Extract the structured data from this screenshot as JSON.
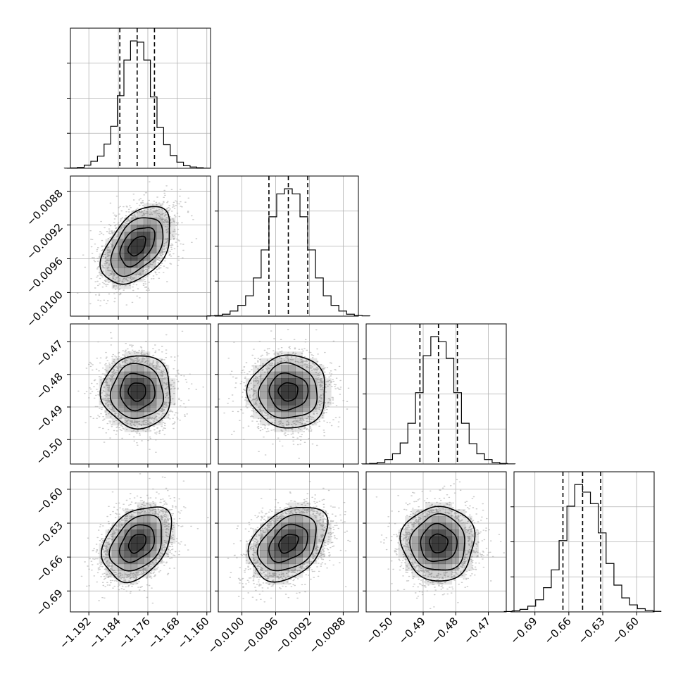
{
  "chart_data": {
    "type": "corner",
    "parameters": [
      {
        "range": [
          -1.197,
          -1.159
        ],
        "ticks": [
          -1.192,
          -1.184,
          -1.176,
          -1.168,
          -1.16
        ],
        "tick_labels": [
          "−1.192",
          "−1.184",
          "−1.176",
          "−1.168",
          "−1.160"
        ],
        "quantiles": [
          -1.1836,
          -1.1789,
          -1.1742
        ],
        "mean": -1.1789,
        "sd": 0.0047,
        "hist_counts": [
          1,
          3,
          8,
          25,
          55,
          95,
          190,
          330,
          570,
          850,
          1000,
          990,
          850,
          560,
          320,
          185,
          100,
          48,
          20,
          10,
          4,
          1
        ]
      },
      {
        "range": [
          -0.01028,
          -0.00862
        ],
        "ticks": [
          -0.01,
          -0.0096,
          -0.0092,
          -0.0088
        ],
        "tick_labels": [
          "−0.0100",
          "−0.0096",
          "−0.0092",
          "−0.0088"
        ],
        "quantiles": [
          -0.00968,
          -0.00945,
          -0.00922
        ],
        "mean": -0.00945,
        "sd": 0.00023,
        "hist_counts": [
          2,
          5,
          15,
          40,
          85,
          160,
          300,
          520,
          780,
          960,
          1000,
          960,
          780,
          520,
          300,
          160,
          85,
          40,
          15,
          5,
          2
        ]
      },
      {
        "range": [
          -0.5075,
          -0.4645
        ],
        "ticks": [
          -0.5,
          -0.49,
          -0.48,
          -0.47
        ],
        "tick_labels": [
          "−0.50",
          "−0.49",
          "−0.48",
          "−0.47"
        ],
        "quantiles": [
          -0.491,
          -0.4853,
          -0.4795
        ],
        "mean": -0.4853,
        "sd": 0.0056,
        "hist_counts": [
          1,
          4,
          12,
          35,
          80,
          165,
          320,
          560,
          850,
          1000,
          960,
          830,
          560,
          320,
          160,
          80,
          35,
          12,
          4,
          1
        ]
      },
      {
        "range": [
          -0.7085,
          -0.5845
        ],
        "ticks": [
          -0.69,
          -0.66,
          -0.63,
          -0.6
        ],
        "tick_labels": [
          "−0.69",
          "−0.66",
          "−0.63",
          "−0.60"
        ],
        "quantiles": [
          -0.6652,
          -0.6478,
          -0.6318
        ],
        "mean": -0.6478,
        "sd": 0.0165,
        "hist_counts": [
          3,
          8,
          20,
          45,
          95,
          190,
          330,
          560,
          830,
          1000,
          940,
          850,
          620,
          380,
          210,
          110,
          55,
          25,
          10,
          4
        ]
      }
    ],
    "pairs": [
      {
        "row": 1,
        "col": 0,
        "correlation": 0.45
      },
      {
        "row": 2,
        "col": 0,
        "correlation": 0.0
      },
      {
        "row": 2,
        "col": 1,
        "correlation": 0.0
      },
      {
        "row": 3,
        "col": 0,
        "correlation": 0.35
      },
      {
        "row": 3,
        "col": 1,
        "correlation": 0.35
      },
      {
        "row": 3,
        "col": 2,
        "correlation": 0.0
      }
    ],
    "contour_levels_sigma": [
      0.5,
      1.0,
      1.5,
      2.0
    ],
    "colors": {
      "contour": "#000000",
      "density": "#000000",
      "points": "#9e9e9e",
      "grid": "#b0b0b0"
    }
  }
}
